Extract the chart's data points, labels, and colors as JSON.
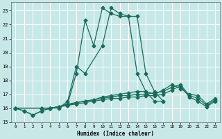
{
  "xlabel": "Humidex (Indice chaleur)",
  "background_color": "#c8e8e8",
  "grid_color": "#ffffff",
  "line_color": "#1a6b5a",
  "xlim": [
    -0.5,
    23.5
  ],
  "ylim": [
    15,
    23.6
  ],
  "yticks": [
    15,
    16,
    17,
    18,
    19,
    20,
    21,
    22,
    23
  ],
  "xticks": [
    0,
    1,
    2,
    3,
    4,
    5,
    6,
    7,
    8,
    9,
    10,
    11,
    12,
    13,
    14,
    15,
    16,
    17,
    18,
    19,
    20,
    21,
    22,
    23
  ],
  "lines": [
    {
      "x": [
        0,
        1,
        2,
        3,
        4,
        5,
        6,
        7,
        8,
        10,
        11,
        12,
        13,
        14,
        15,
        16,
        17
      ],
      "y": [
        16.0,
        15.8,
        15.5,
        15.8,
        16.0,
        16.0,
        16.5,
        19.0,
        18.5,
        20.5,
        23.2,
        22.8,
        22.6,
        22.6,
        18.5,
        17.2,
        16.5
      ]
    },
    {
      "x": [
        0,
        1,
        2,
        3,
        4,
        5,
        6,
        7,
        8,
        9,
        10,
        11,
        12,
        13,
        14,
        15,
        16,
        17
      ],
      "y": [
        16.0,
        15.8,
        15.5,
        15.8,
        16.0,
        16.1,
        16.3,
        18.5,
        22.3,
        20.5,
        23.2,
        22.8,
        22.6,
        22.6,
        18.5,
        17.2,
        16.5,
        16.5
      ]
    },
    {
      "x": [
        0,
        3,
        4,
        5,
        6,
        7,
        8,
        9,
        10,
        11,
        12,
        13,
        14,
        15,
        16,
        17,
        18,
        19,
        20,
        21,
        22,
        23
      ],
      "y": [
        16.0,
        16.0,
        16.0,
        16.1,
        16.2,
        16.3,
        16.4,
        16.5,
        16.6,
        16.7,
        16.7,
        16.8,
        16.8,
        16.9,
        16.9,
        17.0,
        17.3,
        17.6,
        16.8,
        16.5,
        16.1,
        16.5
      ]
    },
    {
      "x": [
        0,
        3,
        4,
        5,
        6,
        7,
        8,
        9,
        10,
        11,
        12,
        13,
        14,
        15,
        16,
        17,
        18,
        19,
        20,
        21,
        22,
        23
      ],
      "y": [
        16.0,
        16.0,
        16.0,
        16.1,
        16.3,
        16.4,
        16.5,
        16.6,
        16.7,
        16.8,
        16.9,
        16.9,
        17.0,
        17.0,
        17.1,
        17.2,
        17.5,
        17.7,
        16.9,
        16.7,
        16.2,
        16.6
      ]
    },
    {
      "x": [
        0,
        3,
        4,
        5,
        6,
        7,
        8,
        9,
        10,
        11,
        12,
        13,
        14,
        15,
        16,
        17,
        18,
        19,
        20,
        21,
        22,
        23
      ],
      "y": [
        16.0,
        16.0,
        16.0,
        16.1,
        16.2,
        16.4,
        16.5,
        16.6,
        16.8,
        16.9,
        17.0,
        17.1,
        17.2,
        17.2,
        17.0,
        17.3,
        17.7,
        17.4,
        17.0,
        16.9,
        16.3,
        16.7
      ]
    }
  ]
}
